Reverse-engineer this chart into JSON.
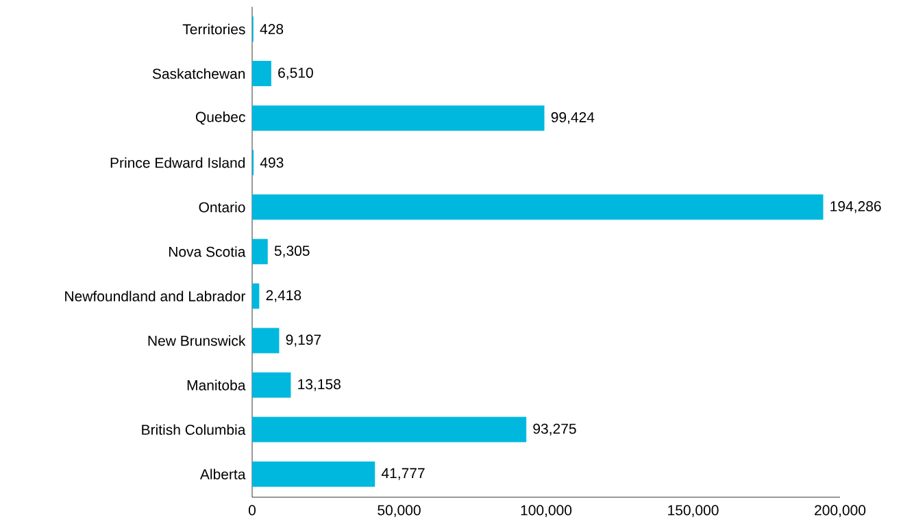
{
  "chart_data": {
    "type": "bar",
    "orientation": "horizontal",
    "categories": [
      "Territories",
      "Saskatchewan",
      "Quebec",
      "Prince Edward Island",
      "Ontario",
      "Nova Scotia",
      "Newfoundland and Labrador",
      "New Brunswick",
      "Manitoba",
      "British Columbia",
      "Alberta"
    ],
    "values": [
      428,
      6510,
      99424,
      493,
      194286,
      5305,
      2418,
      9197,
      13158,
      93275,
      41777
    ],
    "value_labels": [
      "428",
      "6,510",
      "99,424",
      "493",
      "194,286",
      "5,305",
      "2,418",
      "9,197",
      "13,158",
      "93,275",
      "41,777"
    ],
    "color": "#00b8de",
    "xlim": [
      0,
      200000
    ],
    "xticks": [
      0,
      {
        "value": 50000,
        "label": "50,000"
      },
      {
        "value": 100000,
        "label": "100,000"
      },
      {
        "value": 150000,
        "label": "150,000"
      },
      {
        "value": 200000,
        "label": "200,000"
      }
    ],
    "grid": false
  }
}
